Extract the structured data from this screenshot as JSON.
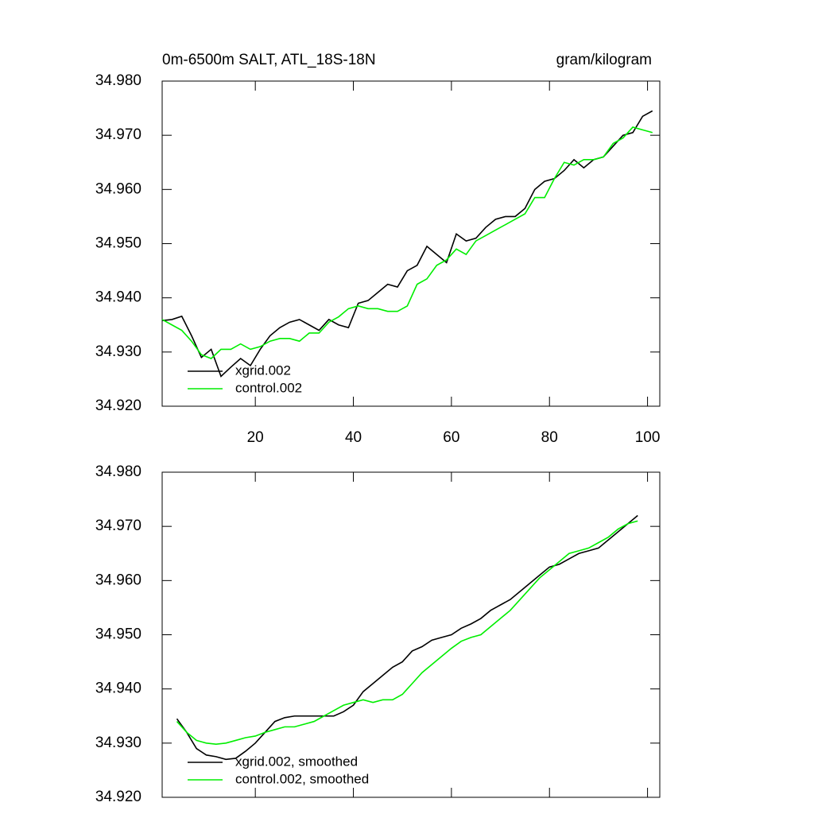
{
  "chart_data": [
    {
      "type": "line",
      "title": "0m-6500m SALT, ATL_18S-18N",
      "units": "gram/kilogram",
      "x": [
        1,
        3,
        5,
        7,
        9,
        11,
        13,
        15,
        17,
        19,
        21,
        23,
        25,
        27,
        29,
        31,
        33,
        35,
        37,
        39,
        41,
        43,
        45,
        47,
        49,
        51,
        53,
        55,
        57,
        59,
        61,
        63,
        65,
        67,
        69,
        71,
        73,
        75,
        77,
        79,
        81,
        83,
        85,
        87,
        89,
        91,
        93,
        95,
        97,
        99,
        101
      ],
      "series": [
        {
          "name": "xgrid.002",
          "color": "#000000",
          "values": [
            34.9358,
            34.936,
            34.9366,
            34.933,
            34.929,
            34.9305,
            34.9255,
            34.9272,
            34.9288,
            34.9275,
            34.9305,
            34.933,
            34.9345,
            34.9355,
            34.936,
            34.935,
            34.934,
            34.936,
            34.935,
            34.9345,
            34.939,
            34.9395,
            34.941,
            34.9425,
            34.942,
            34.945,
            34.946,
            34.9495,
            34.948,
            34.9465,
            34.9518,
            34.9505,
            34.951,
            34.953,
            34.9545,
            34.955,
            34.955,
            34.9565,
            34.96,
            34.9615,
            34.962,
            34.9635,
            34.9655,
            34.964,
            34.9655,
            34.966,
            34.968,
            34.97,
            34.9705,
            34.9735,
            34.9745
          ]
        },
        {
          "name": "control.002",
          "color": "#00ee00",
          "values": [
            34.936,
            34.935,
            34.934,
            34.932,
            34.9295,
            34.9288,
            34.9305,
            34.9305,
            34.9315,
            34.9305,
            34.931,
            34.932,
            34.9325,
            34.9325,
            34.932,
            34.9335,
            34.9335,
            34.9355,
            34.9365,
            34.938,
            34.9385,
            34.938,
            34.938,
            34.9375,
            34.9375,
            34.9385,
            34.9425,
            34.9435,
            34.946,
            34.947,
            34.949,
            34.948,
            34.9505,
            34.9515,
            34.9525,
            34.9535,
            34.9545,
            34.9555,
            34.9585,
            34.9585,
            34.962,
            34.965,
            34.9645,
            34.9655,
            34.9655,
            34.966,
            34.9685,
            34.9695,
            34.9715,
            34.971,
            34.9705
          ]
        }
      ],
      "xlim": [
        1,
        102.5
      ],
      "ylim": [
        34.92,
        34.98
      ],
      "xticks": [
        20,
        40,
        60,
        80,
        100
      ],
      "xtick_labels": true,
      "yticks": [
        {
          "value": 34.92,
          "label": "34.920"
        },
        {
          "value": 34.93,
          "label": "34.930"
        },
        {
          "value": 34.94,
          "label": "34.940"
        },
        {
          "value": 34.95,
          "label": "34.950"
        },
        {
          "value": 34.96,
          "label": "34.960"
        },
        {
          "value": 34.97,
          "label": "34.970"
        },
        {
          "value": 34.98,
          "label": "34.980"
        }
      ],
      "legend": "lower left"
    },
    {
      "type": "line",
      "x": [
        4,
        6,
        8,
        10,
        12,
        14,
        16,
        18,
        20,
        22,
        24,
        26,
        28,
        30,
        32,
        34,
        36,
        38,
        40,
        42,
        44,
        46,
        48,
        50,
        52,
        54,
        56,
        58,
        60,
        62,
        64,
        66,
        68,
        70,
        72,
        74,
        76,
        78,
        80,
        82,
        84,
        86,
        88,
        90,
        92,
        94,
        96,
        98
      ],
      "series": [
        {
          "name": "xgrid.002, smoothed",
          "color": "#000000",
          "values": [
            34.9345,
            34.932,
            34.929,
            34.9278,
            34.9275,
            34.927,
            34.9272,
            34.9285,
            34.93,
            34.932,
            34.934,
            34.9347,
            34.935,
            34.935,
            34.935,
            34.935,
            34.935,
            34.9358,
            34.937,
            34.9395,
            34.941,
            34.9425,
            34.944,
            34.945,
            34.947,
            34.9478,
            34.949,
            34.9495,
            34.95,
            34.9512,
            34.952,
            34.953,
            34.9545,
            34.9555,
            34.9565,
            34.958,
            34.9595,
            34.961,
            34.9625,
            34.963,
            34.964,
            34.965,
            34.9655,
            34.966,
            34.9675,
            34.969,
            34.9705,
            34.972
          ]
        },
        {
          "name": "control.002, smoothed",
          "color": "#00ee00",
          "values": [
            34.934,
            34.932,
            34.9305,
            34.93,
            34.9298,
            34.93,
            34.9305,
            34.931,
            34.9313,
            34.932,
            34.9325,
            34.933,
            34.933,
            34.9335,
            34.934,
            34.935,
            34.936,
            34.937,
            34.9375,
            34.938,
            34.9375,
            34.938,
            34.938,
            34.939,
            34.941,
            34.943,
            34.9445,
            34.946,
            34.9475,
            34.9488,
            34.9495,
            34.95,
            34.9515,
            34.953,
            34.9545,
            34.9565,
            34.9585,
            34.9605,
            34.962,
            34.9635,
            34.965,
            34.9655,
            34.966,
            34.967,
            34.968,
            34.9695,
            34.9705,
            34.971
          ]
        }
      ],
      "xlim": [
        1,
        102.5
      ],
      "ylim": [
        34.92,
        34.98
      ],
      "xticks": [
        20,
        40,
        60,
        80,
        100
      ],
      "xtick_labels": false,
      "yticks": [
        {
          "value": 34.92,
          "label": "34.920"
        },
        {
          "value": 34.93,
          "label": "34.930"
        },
        {
          "value": 34.94,
          "label": "34.940"
        },
        {
          "value": 34.95,
          "label": "34.950"
        },
        {
          "value": 34.96,
          "label": "34.960"
        },
        {
          "value": 34.97,
          "label": "34.970"
        },
        {
          "value": 34.98,
          "label": "34.980"
        }
      ],
      "legend": "lower left"
    }
  ]
}
